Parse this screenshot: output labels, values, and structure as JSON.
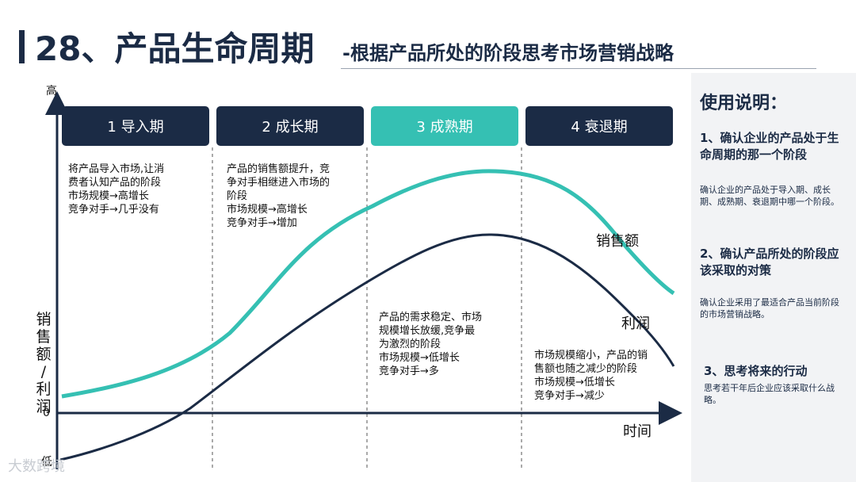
{
  "title": {
    "main": "28、产品生命周期",
    "sub": "-根据产品所处的阶段思考市场营销战略"
  },
  "diagram": {
    "y_high": "高",
    "y_zero": "0",
    "y_low": "低",
    "y_label": [
      "销",
      "售",
      "额",
      "/",
      "利",
      "润"
    ],
    "x_label": "时间",
    "curve_sales_label": "销售额",
    "curve_profit_label": "利润",
    "colors": {
      "navy": "#1b2b45",
      "teal": "#35c0b3"
    },
    "stages": [
      {
        "label": "1 导入期",
        "active": false,
        "lines": [
          "将产品导入市场,让消",
          "费者认知产品的阶段",
          "市场规模→高增长",
          "竞争对手→几乎没有"
        ]
      },
      {
        "label": "2 成长期",
        "active": false,
        "lines": [
          "产品的销售额提升，竞",
          "争对手相继进入市场的",
          "阶段",
          "市场规模→高增长",
          "竞争对手→增加"
        ]
      },
      {
        "label": "3 成熟期",
        "active": true,
        "lines": [
          "产品的需求稳定、市场",
          "规模增长放缓,竞争最",
          "为激烈的阶段",
          "市场规模→低增长",
          "竞争对手→多"
        ]
      },
      {
        "label": "4 衰退期",
        "active": false,
        "lines": [
          "市场规模缩小，产品的销",
          "售额也随之减少的阶段",
          "市场规模→低增长",
          "竞争对手→减少"
        ]
      }
    ]
  },
  "instructions": {
    "heading": "使用说明：",
    "steps": [
      {
        "title": "1、确认企业的产品处于生命周期的那一个阶段",
        "desc": "确认企业的产品处于导入期、成长期、成熟期、衰退期中哪一个阶段。"
      },
      {
        "title": "2、确认产品所处的阶段应该采取的对策",
        "desc": "确认企业采用了最适合产品当前阶段的市场营销战略。"
      },
      {
        "title": "3、思考将来的行动",
        "desc": "思考若干年后企业应该采取什么战略。"
      }
    ]
  },
  "watermark": "大数跨境"
}
